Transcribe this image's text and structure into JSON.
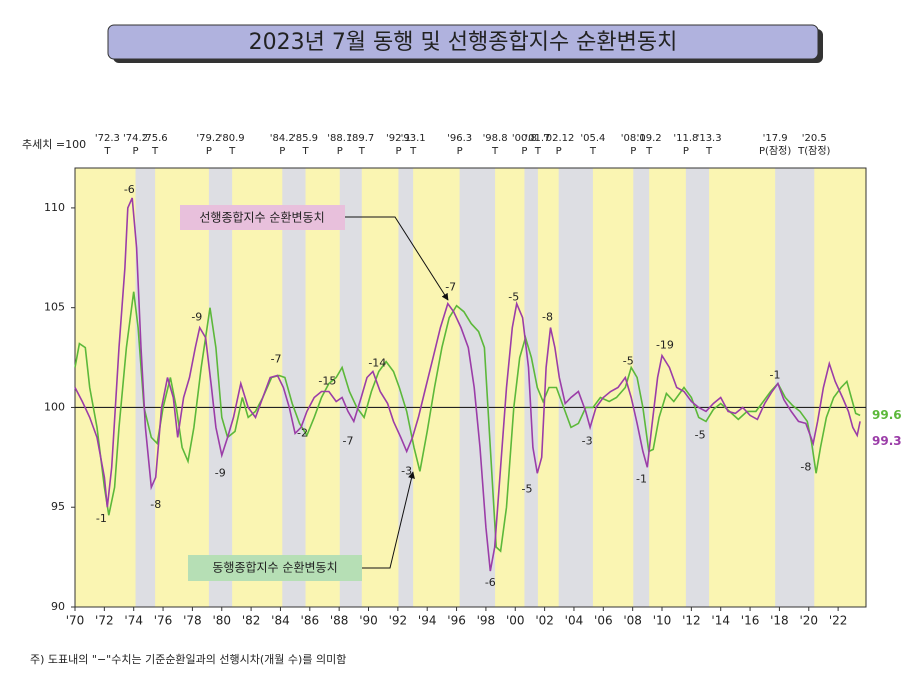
{
  "chart_data": {
    "type": "line",
    "title": "2023년 7월 동행 및 선행종합지수 순환변동치",
    "base_label": "추세치 =100",
    "footnote": "주) 도표내의 \"−\"수치는 기준순환일과의 선행시차(개월 수)를 의미함",
    "xlim": [
      1970,
      2023.9
    ],
    "ylim": [
      90,
      112
    ],
    "yticks": [
      90,
      95,
      100,
      105,
      110
    ],
    "reference_line": 100,
    "xticks": [
      {
        "value": 1970,
        "label": "'70"
      },
      {
        "value": 1972,
        "label": "'72"
      },
      {
        "value": 1974,
        "label": "'74"
      },
      {
        "value": 1976,
        "label": "'76"
      },
      {
        "value": 1978,
        "label": "'78"
      },
      {
        "value": 1980,
        "label": "'80"
      },
      {
        "value": 1982,
        "label": "'82"
      },
      {
        "value": 1984,
        "label": "'84"
      },
      {
        "value": 1986,
        "label": "'86"
      },
      {
        "value": 1988,
        "label": "'88"
      },
      {
        "value": 1990,
        "label": "'90"
      },
      {
        "value": 1992,
        "label": "'92"
      },
      {
        "value": 1994,
        "label": "'94"
      },
      {
        "value": 1996,
        "label": "'96"
      },
      {
        "value": 1998,
        "label": "'98"
      },
      {
        "value": 2000,
        "label": "'00"
      },
      {
        "value": 2002,
        "label": "'02"
      },
      {
        "value": 2004,
        "label": "'04"
      },
      {
        "value": 2006,
        "label": "'06"
      },
      {
        "value": 2008,
        "label": "'08"
      },
      {
        "value": 2010,
        "label": "'10"
      },
      {
        "value": 2012,
        "label": "'12"
      },
      {
        "value": 2014,
        "label": "'14"
      },
      {
        "value": 2016,
        "label": "'16"
      },
      {
        "value": 2018,
        "label": "'18"
      },
      {
        "value": 2020,
        "label": "'20"
      },
      {
        "value": 2022,
        "label": "'22"
      }
    ],
    "turning_points": [
      {
        "date": "'72.3",
        "type": "T"
      },
      {
        "date": "'74.2",
        "type": "P"
      },
      {
        "date": "'75.6",
        "type": "T"
      },
      {
        "date": "'79.2",
        "type": "P"
      },
      {
        "date": "'80.9",
        "type": "T"
      },
      {
        "date": "'84.2",
        "type": "P"
      },
      {
        "date": "'85.9",
        "type": "T"
      },
      {
        "date": "'88.1",
        "type": "P"
      },
      {
        "date": "'89.7",
        "type": "T"
      },
      {
        "date": "'92.1",
        "type": "P"
      },
      {
        "date": "'93.1",
        "type": "T"
      },
      {
        "date": "'96.3",
        "type": "P"
      },
      {
        "date": "'98.8",
        "type": "T"
      },
      {
        "date": "'00.8",
        "type": "P"
      },
      {
        "date": "'01.7",
        "type": "T"
      },
      {
        "date": "'02.12",
        "type": "P"
      },
      {
        "date": "'05.4",
        "type": "T"
      },
      {
        "date": "'08.1",
        "type": "P"
      },
      {
        "date": "'09.2",
        "type": "T"
      },
      {
        "date": "'11.8",
        "type": "P"
      },
      {
        "date": "'13.3",
        "type": "T"
      },
      {
        "date": "'17.9",
        "type": "P(잠정)"
      },
      {
        "date": "'20.5",
        "type": "T(잠정)"
      }
    ],
    "colors": {
      "expansion": "#faf5b2",
      "contraction": "#dddee3"
    },
    "series": [
      {
        "name": "동행종합지수 순환변동치",
        "color": "#5cb83a",
        "x": [
          1970.0,
          1970.3,
          1970.7,
          1971.0,
          1971.5,
          1972.0,
          1972.3,
          1972.7,
          1973.0,
          1973.5,
          1974.0,
          1974.3,
          1974.7,
          1975.2,
          1975.6,
          1976.0,
          1976.5,
          1976.9,
          1977.3,
          1977.7,
          1978.1,
          1978.6,
          1979.2,
          1979.6,
          1980.0,
          1980.4,
          1980.9,
          1981.4,
          1981.8,
          1982.3,
          1982.8,
          1983.4,
          1983.9,
          1984.3,
          1984.8,
          1985.3,
          1985.8,
          1986.3,
          1986.8,
          1987.3,
          1987.8,
          1988.2,
          1988.7,
          1989.2,
          1989.7,
          1990.2,
          1990.7,
          1991.2,
          1991.7,
          1992.1,
          1992.6,
          1993.1,
          1993.5,
          1994.0,
          1994.5,
          1995.0,
          1995.5,
          1996.0,
          1996.5,
          1997.0,
          1997.5,
          1997.9,
          1998.3,
          1998.7,
          1999.0,
          1999.4,
          1999.9,
          2000.3,
          2000.7,
          2001.1,
          2001.5,
          2001.9,
          2002.3,
          2002.8,
          2003.3,
          2003.8,
          2004.3,
          2004.8,
          2005.3,
          2005.8,
          2006.4,
          2006.9,
          2007.5,
          2007.9,
          2008.3,
          2008.7,
          2009.1,
          2009.4,
          2009.8,
          2010.3,
          2010.8,
          2011.5,
          2012.0,
          2012.5,
          2013.0,
          2013.5,
          2014.0,
          2014.6,
          2015.2,
          2015.8,
          2016.4,
          2016.9,
          2017.4,
          2017.9,
          2018.4,
          2018.9,
          2019.4,
          2019.9,
          2020.2,
          2020.5,
          2020.8,
          2021.2,
          2021.7,
          2022.2,
          2022.6,
          2022.9,
          2023.2,
          2023.5
        ],
        "values": [
          102,
          103.2,
          103,
          101,
          99,
          96,
          94.6,
          96,
          99,
          103,
          105.8,
          104,
          100,
          98.5,
          98.2,
          100,
          101.5,
          100,
          98,
          97.3,
          99,
          102,
          105,
          103,
          99.5,
          98.5,
          98.8,
          100.5,
          99.5,
          99.8,
          100.5,
          101.5,
          101.6,
          101.5,
          100.2,
          99.2,
          98.6,
          99.5,
          100.5,
          101.2,
          101.5,
          102,
          100.8,
          100,
          99.5,
          100.8,
          101.8,
          102.3,
          101.8,
          101,
          99.8,
          98,
          96.8,
          98.8,
          101,
          103,
          104.5,
          105.1,
          104.8,
          104.2,
          103.8,
          103,
          98,
          93,
          92.8,
          95,
          100,
          102.5,
          103.5,
          102.5,
          101,
          100.3,
          101,
          101,
          100,
          99,
          99.2,
          100,
          100,
          100.5,
          100.3,
          100.5,
          101,
          102,
          101.5,
          100,
          97.8,
          97.9,
          99.5,
          100.7,
          100.3,
          101,
          100.5,
          99.5,
          99.3,
          99.9,
          100.2,
          99.8,
          99.4,
          99.8,
          99.8,
          100.3,
          100.8,
          101.2,
          100.5,
          100.1,
          99.8,
          99.3,
          98.2,
          96.7,
          98,
          99.5,
          100.5,
          101,
          101.3,
          100.5,
          99.7,
          99.6
        ]
      },
      {
        "name": "선행종합지수 순환변동치",
        "color": "#9b3da8",
        "x": [
          1970.0,
          1970.5,
          1971.0,
          1971.5,
          1972.0,
          1972.2,
          1972.5,
          1973.0,
          1973.4,
          1973.6,
          1973.9,
          1974.2,
          1974.5,
          1974.8,
          1975.2,
          1975.5,
          1975.9,
          1976.3,
          1976.7,
          1977.0,
          1977.4,
          1977.8,
          1978.2,
          1978.5,
          1978.9,
          1979.3,
          1979.6,
          1980.0,
          1980.4,
          1980.8,
          1981.3,
          1981.8,
          1982.3,
          1982.8,
          1983.3,
          1983.8,
          1984.2,
          1984.6,
          1985.0,
          1985.4,
          1985.8,
          1986.3,
          1986.8,
          1987.3,
          1987.8,
          1988.2,
          1988.6,
          1989.0,
          1989.5,
          1989.9,
          1990.3,
          1990.8,
          1991.3,
          1991.7,
          1992.2,
          1992.6,
          1993.0,
          1993.4,
          1993.9,
          1994.4,
          1994.9,
          1995.4,
          1995.8,
          1996.3,
          1996.8,
          1997.2,
          1997.6,
          1998.0,
          1998.3,
          1998.6,
          1999.0,
          1999.4,
          1999.8,
          2000.1,
          2000.5,
          2000.9,
          2001.2,
          2001.5,
          2001.8,
          2002.1,
          2002.4,
          2002.7,
          2003.0,
          2003.4,
          2003.8,
          2004.3,
          2004.8,
          2005.1,
          2005.5,
          2006.0,
          2006.5,
          2007.0,
          2007.5,
          2007.9,
          2008.3,
          2008.7,
          2009.0,
          2009.3,
          2009.7,
          2010.0,
          2010.5,
          2011.0,
          2011.5,
          2012.0,
          2012.5,
          2013.0,
          2013.5,
          2014.0,
          2014.5,
          2015.0,
          2015.5,
          2016.0,
          2016.5,
          2017.0,
          2017.5,
          2017.9,
          2018.3,
          2018.8,
          2019.3,
          2019.8,
          2020.3,
          2020.6,
          2021.0,
          2021.4,
          2021.8,
          2022.3,
          2022.7,
          2023.0,
          2023.3,
          2023.5
        ],
        "values": [
          101,
          100.3,
          99.5,
          98.5,
          96.5,
          95,
          97,
          103,
          107,
          110,
          110.5,
          108,
          103,
          99,
          96,
          96.5,
          100,
          101.5,
          100.5,
          98.5,
          100.5,
          101.5,
          103,
          104,
          103.5,
          101,
          99,
          97.6,
          98.5,
          99.5,
          101.2,
          100,
          99.5,
          100.5,
          101.5,
          101.6,
          101,
          100,
          98.7,
          99,
          99.8,
          100.5,
          100.8,
          100.8,
          100.3,
          100.5,
          99.8,
          99.3,
          100.5,
          101.5,
          101.8,
          100.8,
          100.2,
          99.3,
          98.5,
          97.8,
          98.5,
          99.5,
          101,
          102.5,
          104,
          105.2,
          104.8,
          104,
          103,
          101,
          98,
          94,
          91.8,
          93,
          97,
          101,
          104,
          105.2,
          104.5,
          102,
          98,
          96.7,
          97.5,
          102,
          104,
          103,
          101.5,
          100.2,
          100.5,
          100.8,
          99.8,
          99,
          100,
          100.5,
          100.8,
          101,
          101.5,
          100.5,
          99.2,
          97.8,
          97,
          99,
          101.5,
          102.6,
          102,
          101,
          100.8,
          100.3,
          100,
          99.8,
          100.2,
          100.5,
          99.8,
          99.7,
          100,
          99.6,
          99.4,
          100.2,
          100.8,
          101.2,
          100.4,
          99.8,
          99.3,
          99.2,
          98.2,
          99.3,
          101,
          102.2,
          101.3,
          100.5,
          99.8,
          99,
          98.6,
          99.3
        ]
      }
    ],
    "annotations": [
      {
        "text": "-6",
        "x": 1973.7,
        "y": 110.9
      },
      {
        "text": "-1",
        "x": 1971.8,
        "y": 94.4
      },
      {
        "text": "-8",
        "x": 1975.5,
        "y": 95.1
      },
      {
        "text": "-9",
        "x": 1978.3,
        "y": 104.5
      },
      {
        "text": "-9",
        "x": 1979.9,
        "y": 96.7
      },
      {
        "text": "-7",
        "x": 1983.7,
        "y": 102.4
      },
      {
        "text": "-2",
        "x": 1985.5,
        "y": 98.7
      },
      {
        "text": "-15",
        "x": 1987.2,
        "y": 101.3
      },
      {
        "text": "-7",
        "x": 1988.6,
        "y": 98.3
      },
      {
        "text": "-14",
        "x": 1990.6,
        "y": 102.2
      },
      {
        "text": "-3",
        "x": 1992.6,
        "y": 96.8
      },
      {
        "text": "-7",
        "x": 1995.6,
        "y": 106
      },
      {
        "text": "-6",
        "x": 1998.3,
        "y": 91.2
      },
      {
        "text": "-5",
        "x": 1999.9,
        "y": 105.5
      },
      {
        "text": "-5",
        "x": 2000.8,
        "y": 95.9
      },
      {
        "text": "-8",
        "x": 2002.2,
        "y": 104.5
      },
      {
        "text": "-3",
        "x": 2004.9,
        "y": 98.3
      },
      {
        "text": "-5",
        "x": 2007.7,
        "y": 102.3
      },
      {
        "text": "-1",
        "x": 2008.6,
        "y": 96.4
      },
      {
        "text": "-19",
        "x": 2010.2,
        "y": 103.1
      },
      {
        "text": "-5",
        "x": 2012.6,
        "y": 98.6
      },
      {
        "text": "-1",
        "x": 2017.7,
        "y": 101.6
      },
      {
        "text": "-8",
        "x": 2019.8,
        "y": 97
      }
    ]
  }
}
